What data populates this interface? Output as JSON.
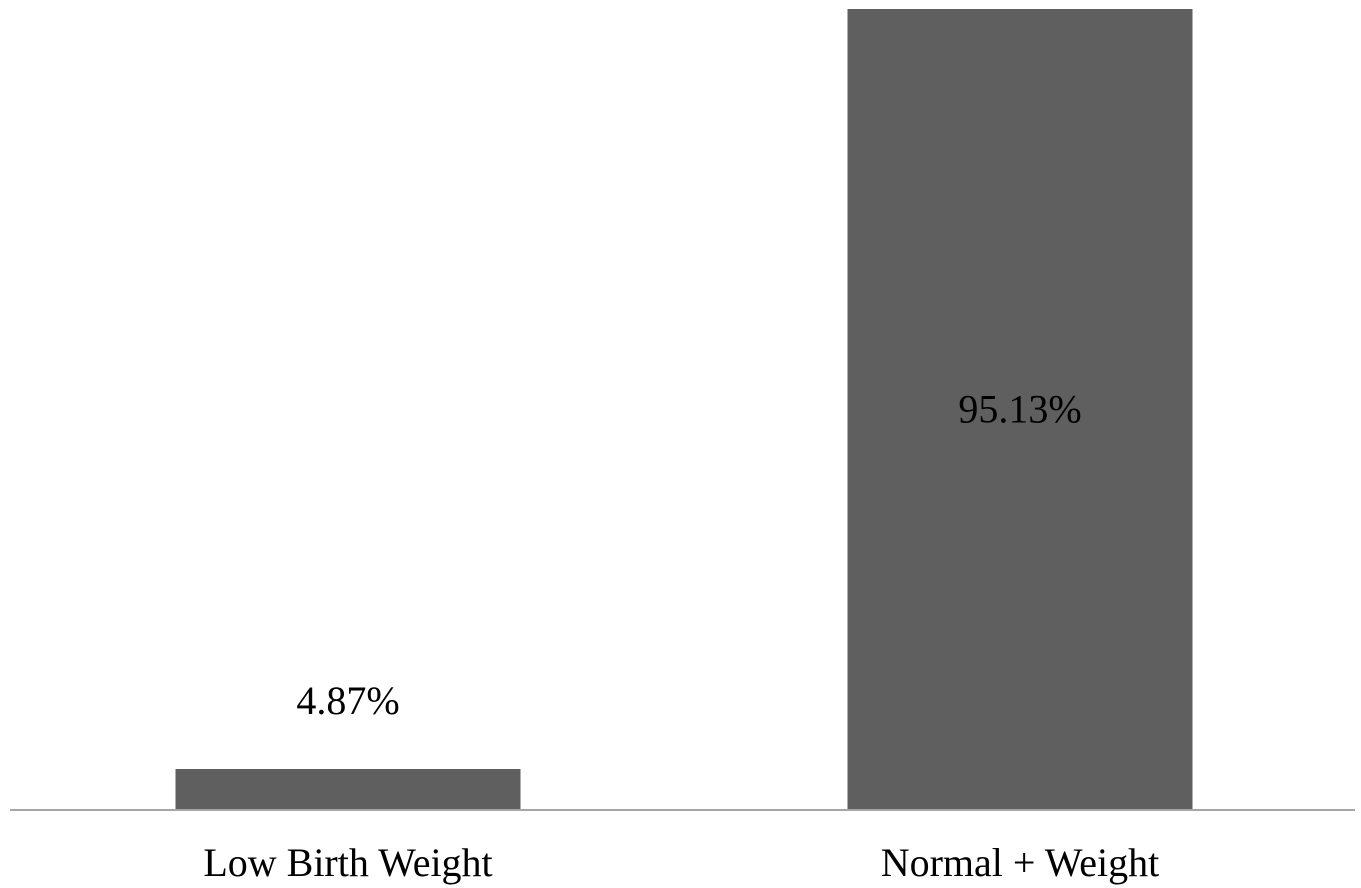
{
  "chart_data": {
    "type": "bar",
    "categories": [
      "Low Birth Weight",
      "Normal + Weight"
    ],
    "values": [
      4.87,
      95.13
    ],
    "data_labels": [
      "4.87%",
      "95.13%"
    ],
    "ylim": [
      0,
      95.13
    ],
    "grid": false,
    "legend": "none",
    "colors": {
      "bar": "#5f5f5f",
      "axis": "#a6a6a6",
      "text": "#000000",
      "background": "#ffffff"
    }
  }
}
